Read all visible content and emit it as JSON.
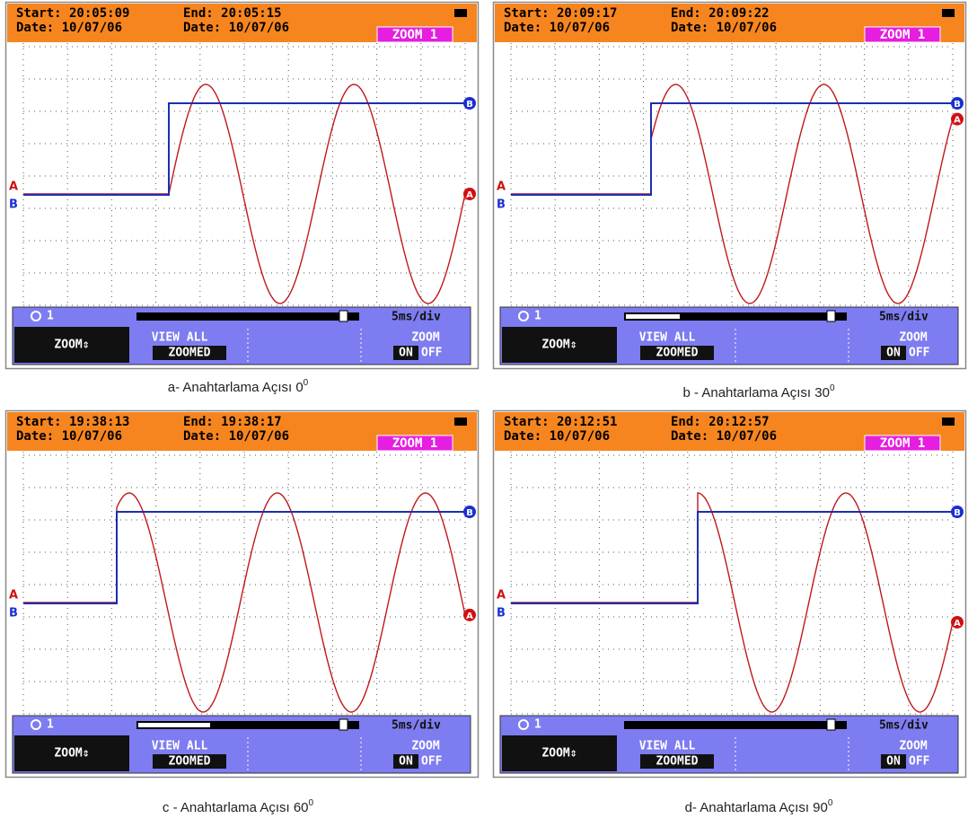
{
  "panels": [
    {
      "header": {
        "start": "Start: 20:05:09",
        "start_date": "Date: 10/07/06",
        "end": "End: 20:05:15",
        "end_date": "Date: 10/07/06",
        "zoom_badge": "ZOOM 1"
      },
      "markers": {
        "left_a": "A",
        "left_b": "B",
        "right_b": "B",
        "right_a": "A"
      },
      "footer": {
        "zoom_level": "1",
        "scale": "5ms/div",
        "zoom_key": "ZOOM⇕",
        "view_all": "VIEW ALL",
        "zoomed": "ZOOMED",
        "zoom_label": "ZOOM",
        "on": "ON",
        "off": "OFF"
      },
      "caption": {
        "label": "a- Anahtarlama Açısı",
        "angle": 0,
        "degree": "0"
      }
    },
    {
      "header": {
        "start": "Start: 20:09:17",
        "start_date": "Date: 10/07/06",
        "end": "End: 20:09:22",
        "end_date": "Date: 10/07/06",
        "zoom_badge": "ZOOM 1"
      },
      "markers": {
        "left_a": "A",
        "left_b": "B",
        "right_b": "B",
        "right_a": "A"
      },
      "footer": {
        "zoom_level": "1",
        "scale": "5ms/div",
        "zoom_key": "ZOOM⇕",
        "view_all": "VIEW ALL",
        "zoomed": "ZOOMED",
        "zoom_label": "ZOOM",
        "on": "ON",
        "off": "OFF"
      },
      "caption": {
        "label": "b - Anahtarlama Açısı",
        "angle": 30,
        "degree": "0"
      }
    },
    {
      "header": {
        "start": "Start: 19:38:13",
        "start_date": "Date: 10/07/06",
        "end": "End: 19:38:17",
        "end_date": "Date: 10/07/06",
        "zoom_badge": "ZOOM 1"
      },
      "markers": {
        "left_a": "A",
        "left_b": "B",
        "right_b": "B",
        "right_a": "A"
      },
      "footer": {
        "zoom_level": "1",
        "scale": "5ms/div",
        "zoom_key": "ZOOM⇕",
        "view_all": "VIEW ALL",
        "zoomed": "ZOOMED",
        "zoom_label": "ZOOM",
        "on": "ON",
        "off": "OFF"
      },
      "caption": {
        "label": "c - Anahtarlama Açısı",
        "angle": 60,
        "degree": "0"
      }
    },
    {
      "header": {
        "start": "Start: 20:12:51",
        "start_date": "Date: 10/07/06",
        "end": "End: 20:12:57",
        "end_date": "Date: 10/07/06",
        "zoom_badge": "ZOOM 1"
      },
      "markers": {
        "left_a": "A",
        "left_b": "B",
        "right_b": "B",
        "right_a": "A"
      },
      "footer": {
        "zoom_level": "1",
        "scale": "5ms/div",
        "zoom_key": "ZOOM⇕",
        "view_all": "VIEW ALL",
        "zoomed": "ZOOMED",
        "zoom_label": "ZOOM",
        "on": "ON",
        "off": "OFF"
      },
      "caption": {
        "label": "d- Anahtarlama Açısı",
        "angle": 90,
        "degree": "0"
      }
    }
  ]
}
